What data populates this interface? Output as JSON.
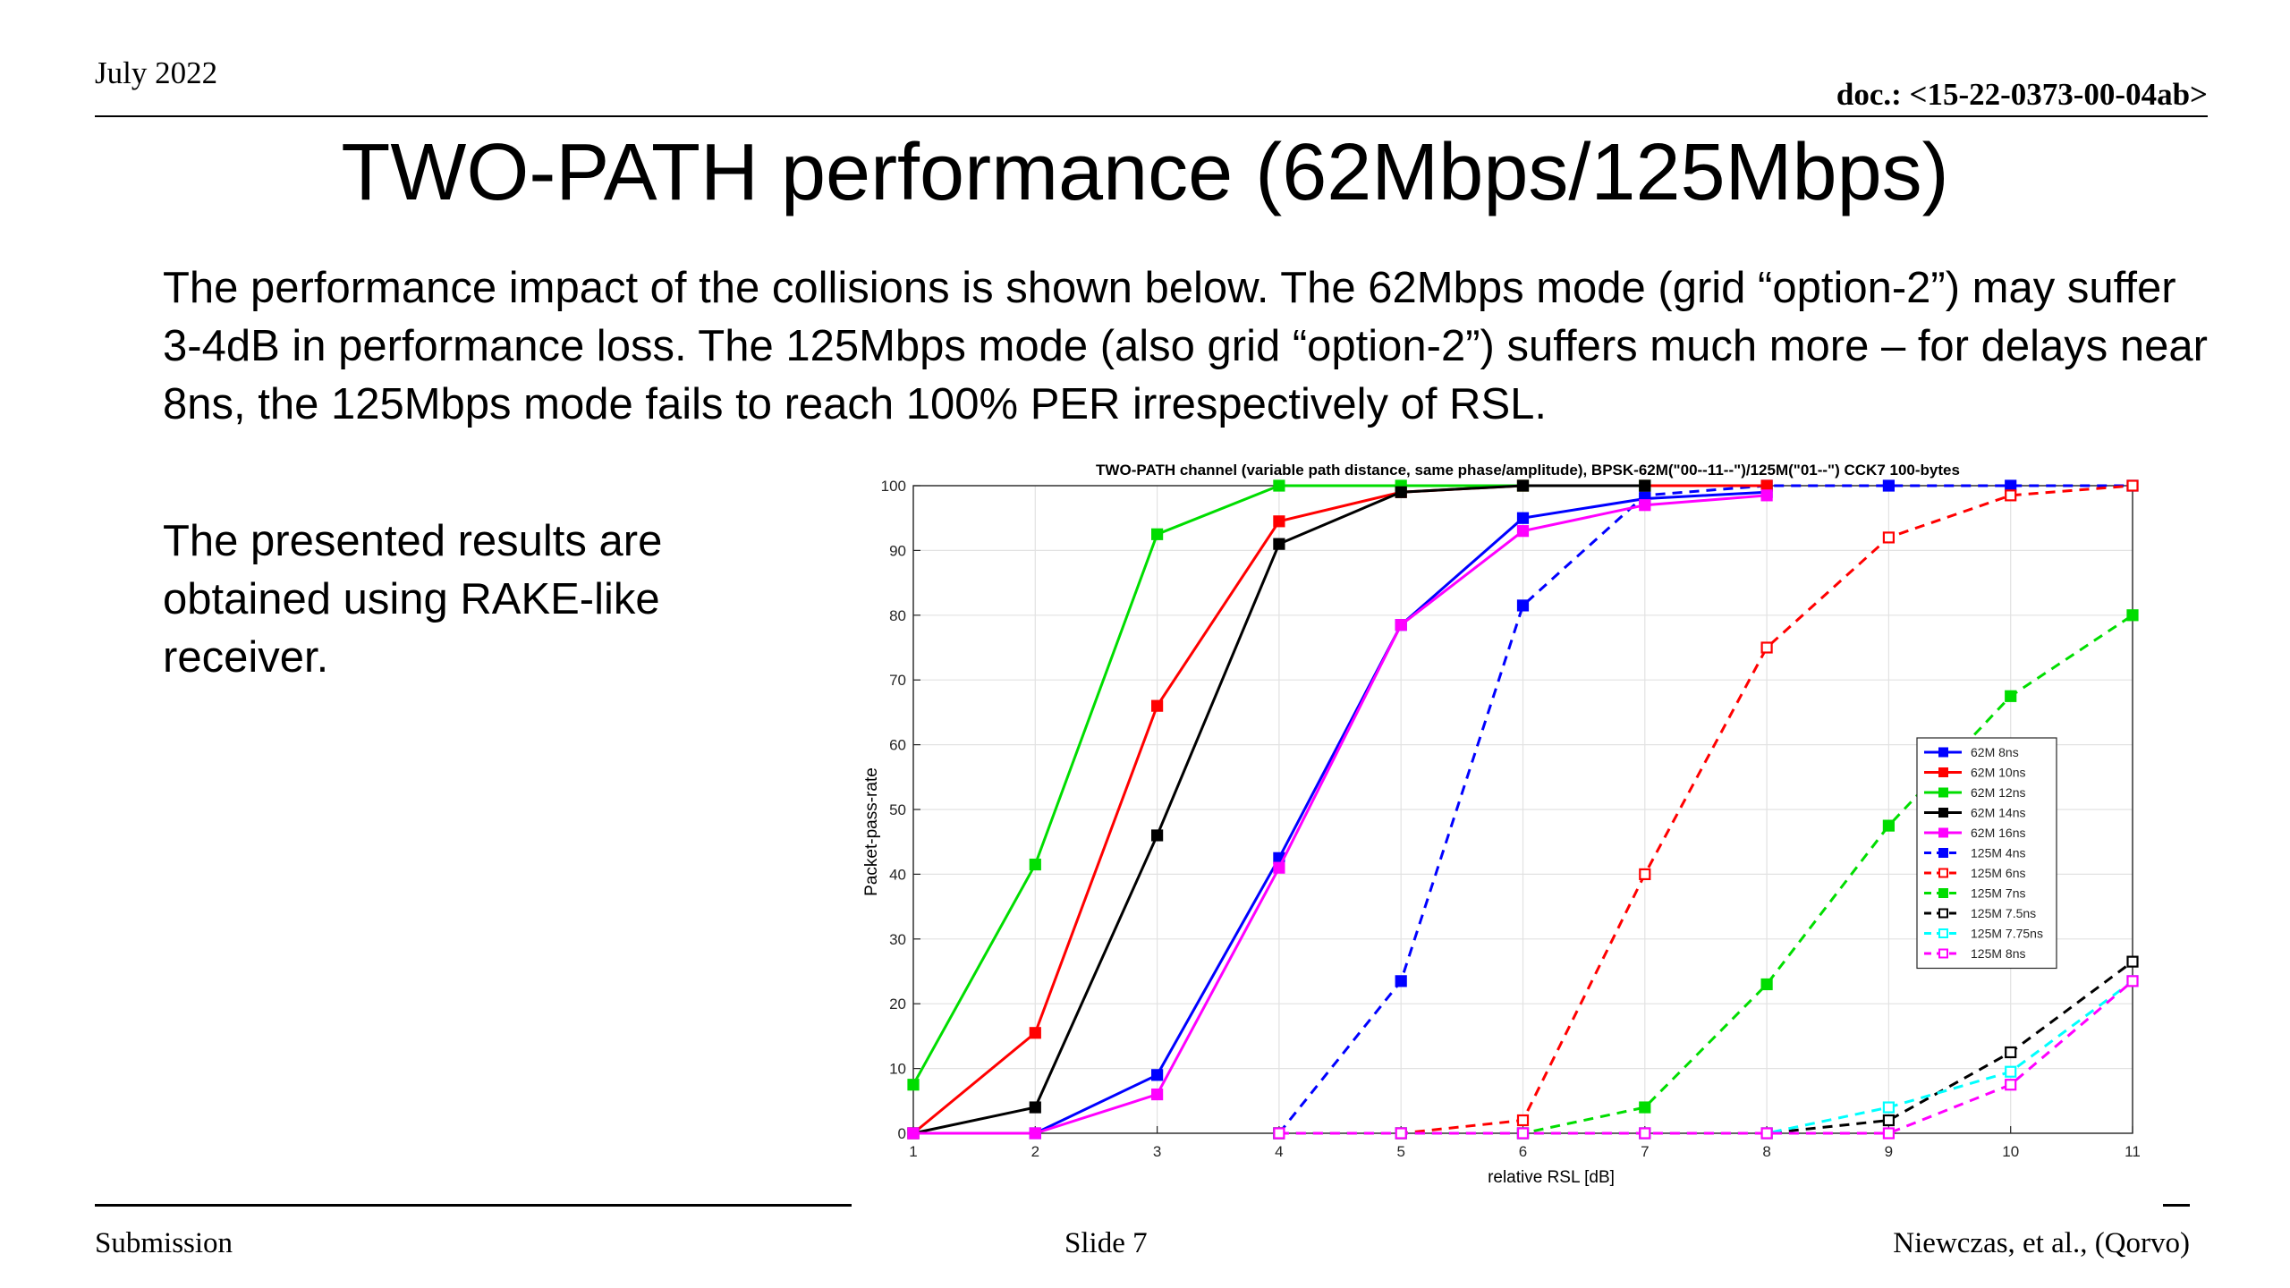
{
  "header": {
    "date": "July 2022",
    "doc": "doc.: <15-22-0373-00-04ab>"
  },
  "title": "TWO-PATH performance (62Mbps/125Mbps)",
  "intro": "The performance impact of the collisions is shown below. The 62Mbps mode (grid “option-2”) may suffer 3-4dB in performance loss. The 125Mbps mode (also grid “option-2”) suffers much more – for delays near 8ns, the 125Mbps mode fails to reach 100% PER irrespectively of RSL.",
  "side_note": "The presented results are obtained using RAKE-like receiver.",
  "footer": {
    "left": "Submission",
    "center": "Slide 7",
    "right": "Niewczas, et al., (Qorvo)"
  },
  "chart_data": {
    "type": "line",
    "title": "TWO-PATH channel (variable path distance, same phase/amplitude), BPSK-62M(\"00--11--\")/125M(\"01--\") CCK7 100-bytes",
    "xlabel": "relative RSL [dB]",
    "ylabel": "Packet-pass-rate",
    "xlim": [
      1,
      11
    ],
    "ylim": [
      0,
      100
    ],
    "xticks": [
      1,
      2,
      3,
      4,
      5,
      6,
      7,
      8,
      9,
      10,
      11
    ],
    "yticks": [
      0,
      10,
      20,
      30,
      40,
      50,
      60,
      70,
      80,
      90,
      100
    ],
    "grid": true,
    "legend_position": "right",
    "series": [
      {
        "name": "62M 8ns",
        "color": "#0000ff",
        "style": "solid",
        "marker": "filled",
        "x": [
          1,
          2,
          3,
          4,
          5,
          6,
          7,
          8
        ],
        "y": [
          0,
          0,
          9,
          42.5,
          78.5,
          95,
          98,
          99
        ]
      },
      {
        "name": "62M 10ns",
        "color": "#ff0000",
        "style": "solid",
        "marker": "filled",
        "x": [
          1,
          2,
          3,
          4,
          5,
          6,
          7,
          8
        ],
        "y": [
          0,
          15.5,
          66,
          94.5,
          99,
          100,
          100,
          100
        ]
      },
      {
        "name": "62M 12ns",
        "color": "#00dd00",
        "style": "solid",
        "marker": "filled",
        "x": [
          1,
          2,
          3,
          4,
          5,
          6,
          7
        ],
        "y": [
          7.5,
          41.5,
          92.5,
          100,
          100,
          100,
          100
        ]
      },
      {
        "name": "62M 14ns",
        "color": "#000000",
        "style": "solid",
        "marker": "filled",
        "x": [
          1,
          2,
          3,
          4,
          5,
          6,
          7
        ],
        "y": [
          0,
          4,
          46,
          91,
          99,
          100,
          100
        ]
      },
      {
        "name": "62M 16ns",
        "color": "#ff00ff",
        "style": "solid",
        "marker": "filled",
        "x": [
          1,
          2,
          3,
          4,
          5,
          6,
          7,
          8
        ],
        "y": [
          0,
          0,
          6,
          41,
          78.5,
          93,
          97,
          98.5
        ]
      },
      {
        "name": "125M 4ns",
        "color": "#0000ff",
        "style": "dashed",
        "marker": "filled",
        "x": [
          4,
          5,
          6,
          7,
          8,
          9,
          10,
          11
        ],
        "y": [
          0,
          23.5,
          81.5,
          98.5,
          100,
          100,
          100,
          100
        ]
      },
      {
        "name": "125M 6ns",
        "color": "#ff0000",
        "style": "dashed",
        "marker": "open",
        "x": [
          4,
          5,
          6,
          7,
          8,
          9,
          10,
          11
        ],
        "y": [
          0,
          0,
          2,
          40,
          75,
          92,
          98.5,
          100
        ]
      },
      {
        "name": "125M 7ns",
        "color": "#00dd00",
        "style": "dashed",
        "marker": "filled",
        "x": [
          4,
          5,
          6,
          7,
          8,
          9,
          10,
          11
        ],
        "y": [
          0,
          0,
          0,
          4,
          23,
          47.5,
          67.5,
          80
        ]
      },
      {
        "name": "125M 7.5ns",
        "color": "#000000",
        "style": "dashed",
        "marker": "open",
        "x": [
          4,
          5,
          6,
          7,
          8,
          9,
          10,
          11
        ],
        "y": [
          0,
          0,
          0,
          0,
          0,
          2,
          12.5,
          26.5
        ]
      },
      {
        "name": "125M 7.75ns",
        "color": "#00ffff",
        "style": "dashed",
        "marker": "open",
        "x": [
          4,
          5,
          6,
          7,
          8,
          9,
          10,
          11
        ],
        "y": [
          0,
          0,
          0,
          0,
          0,
          4,
          9.5,
          23.5
        ]
      },
      {
        "name": "125M 8ns",
        "color": "#ff00ff",
        "style": "dashed",
        "marker": "open",
        "x": [
          4,
          5,
          6,
          7,
          8,
          9,
          10,
          11
        ],
        "y": [
          0,
          0,
          0,
          0,
          0,
          0,
          7.5,
          23.5
        ]
      }
    ]
  }
}
